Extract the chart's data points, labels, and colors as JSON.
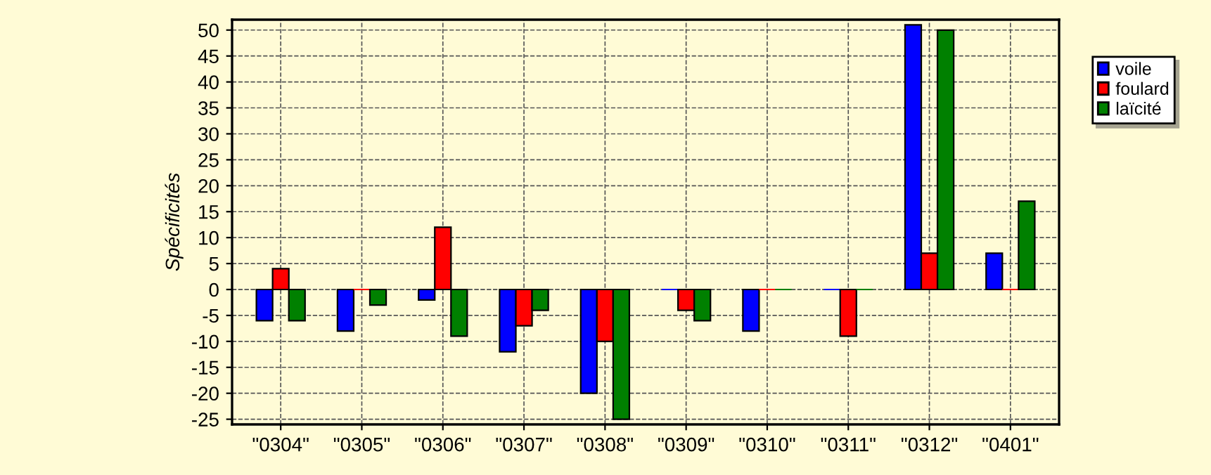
{
  "chart_data": {
    "type": "bar",
    "ylabel": "Spécificités",
    "categories": [
      "\"0304\"",
      "\"0305\"",
      "\"0306\"",
      "\"0307\"",
      "\"0308\"",
      "\"0309\"",
      "\"0310\"",
      "\"0311\"",
      "\"0312\"",
      "\"0401\""
    ],
    "series": [
      {
        "name": "voile",
        "color": "#0000ff",
        "values": [
          -6,
          -8,
          -2,
          -12,
          -20,
          0,
          -8,
          0,
          51,
          7
        ]
      },
      {
        "name": "foulard",
        "color": "#ff0000",
        "values": [
          4,
          0,
          12,
          -7,
          -10,
          -4,
          0,
          -9,
          7,
          0
        ]
      },
      {
        "name": "laïcité",
        "color": "#008000",
        "values": [
          -6,
          -3,
          -9,
          -4,
          -25,
          -6,
          0,
          0,
          50,
          17
        ]
      }
    ],
    "ylim": [
      -26,
      52
    ],
    "yticks": [
      -25,
      -20,
      -15,
      -10,
      -5,
      0,
      5,
      10,
      15,
      20,
      25,
      30,
      35,
      40,
      45,
      50
    ],
    "grid": true,
    "legend": "top right"
  }
}
